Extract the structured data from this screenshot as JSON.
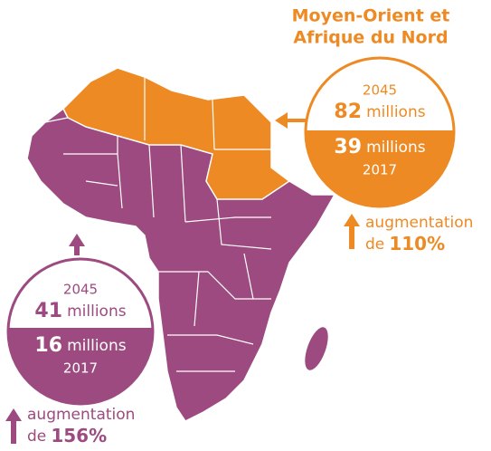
{
  "regions": [
    {
      "title": [
        "Moyen-Orient et",
        "Afrique du Nord"
      ],
      "future": {
        "year": "2045",
        "value": 82,
        "unit": "millions"
      },
      "current": {
        "value": 39,
        "unit": "millions",
        "year": "2017"
      },
      "change": {
        "label": "augmentation",
        "prefix": "de",
        "value": "110%"
      }
    },
    {
      "future": {
        "year": "2045",
        "value": 41,
        "unit": "millions"
      },
      "current": {
        "value": 16,
        "unit": "millions",
        "year": "2017"
      },
      "change": {
        "label": "augmentation",
        "prefix": "de",
        "value": "156%"
      }
    }
  ]
}
